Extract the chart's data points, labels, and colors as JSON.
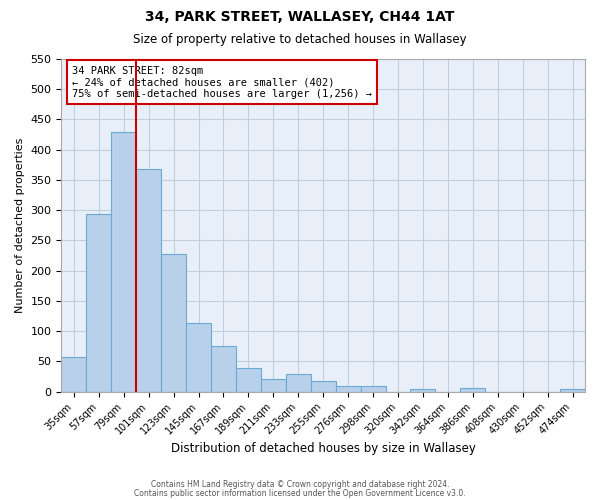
{
  "title": "34, PARK STREET, WALLASEY, CH44 1AT",
  "subtitle": "Size of property relative to detached houses in Wallasey",
  "xlabel": "Distribution of detached houses by size in Wallasey",
  "ylabel": "Number of detached properties",
  "bar_color": "#b8d0ea",
  "bar_edge_color": "#6aaad4",
  "background_color": "#ffffff",
  "axes_bg_color": "#e8eff8",
  "grid_color": "#c0d0e0",
  "categories": [
    "35sqm",
    "57sqm",
    "79sqm",
    "101sqm",
    "123sqm",
    "145sqm",
    "167sqm",
    "189sqm",
    "211sqm",
    "233sqm",
    "255sqm",
    "276sqm",
    "298sqm",
    "320sqm",
    "342sqm",
    "364sqm",
    "386sqm",
    "408sqm",
    "430sqm",
    "452sqm",
    "474sqm"
  ],
  "values": [
    57,
    293,
    430,
    368,
    228,
    113,
    76,
    39,
    21,
    29,
    18,
    10,
    10,
    0,
    5,
    0,
    6,
    0,
    0,
    0,
    5
  ],
  "ylim": [
    0,
    550
  ],
  "yticks": [
    0,
    50,
    100,
    150,
    200,
    250,
    300,
    350,
    400,
    450,
    500,
    550
  ],
  "property_line_color": "#cc0000",
  "property_line_x": 2.5,
  "annotation_title": "34 PARK STREET: 82sqm",
  "annotation_line1": "← 24% of detached houses are smaller (402)",
  "annotation_line2": "75% of semi-detached houses are larger (1,256) →",
  "footer1": "Contains HM Land Registry data © Crown copyright and database right 2024.",
  "footer2": "Contains public sector information licensed under the Open Government Licence v3.0."
}
